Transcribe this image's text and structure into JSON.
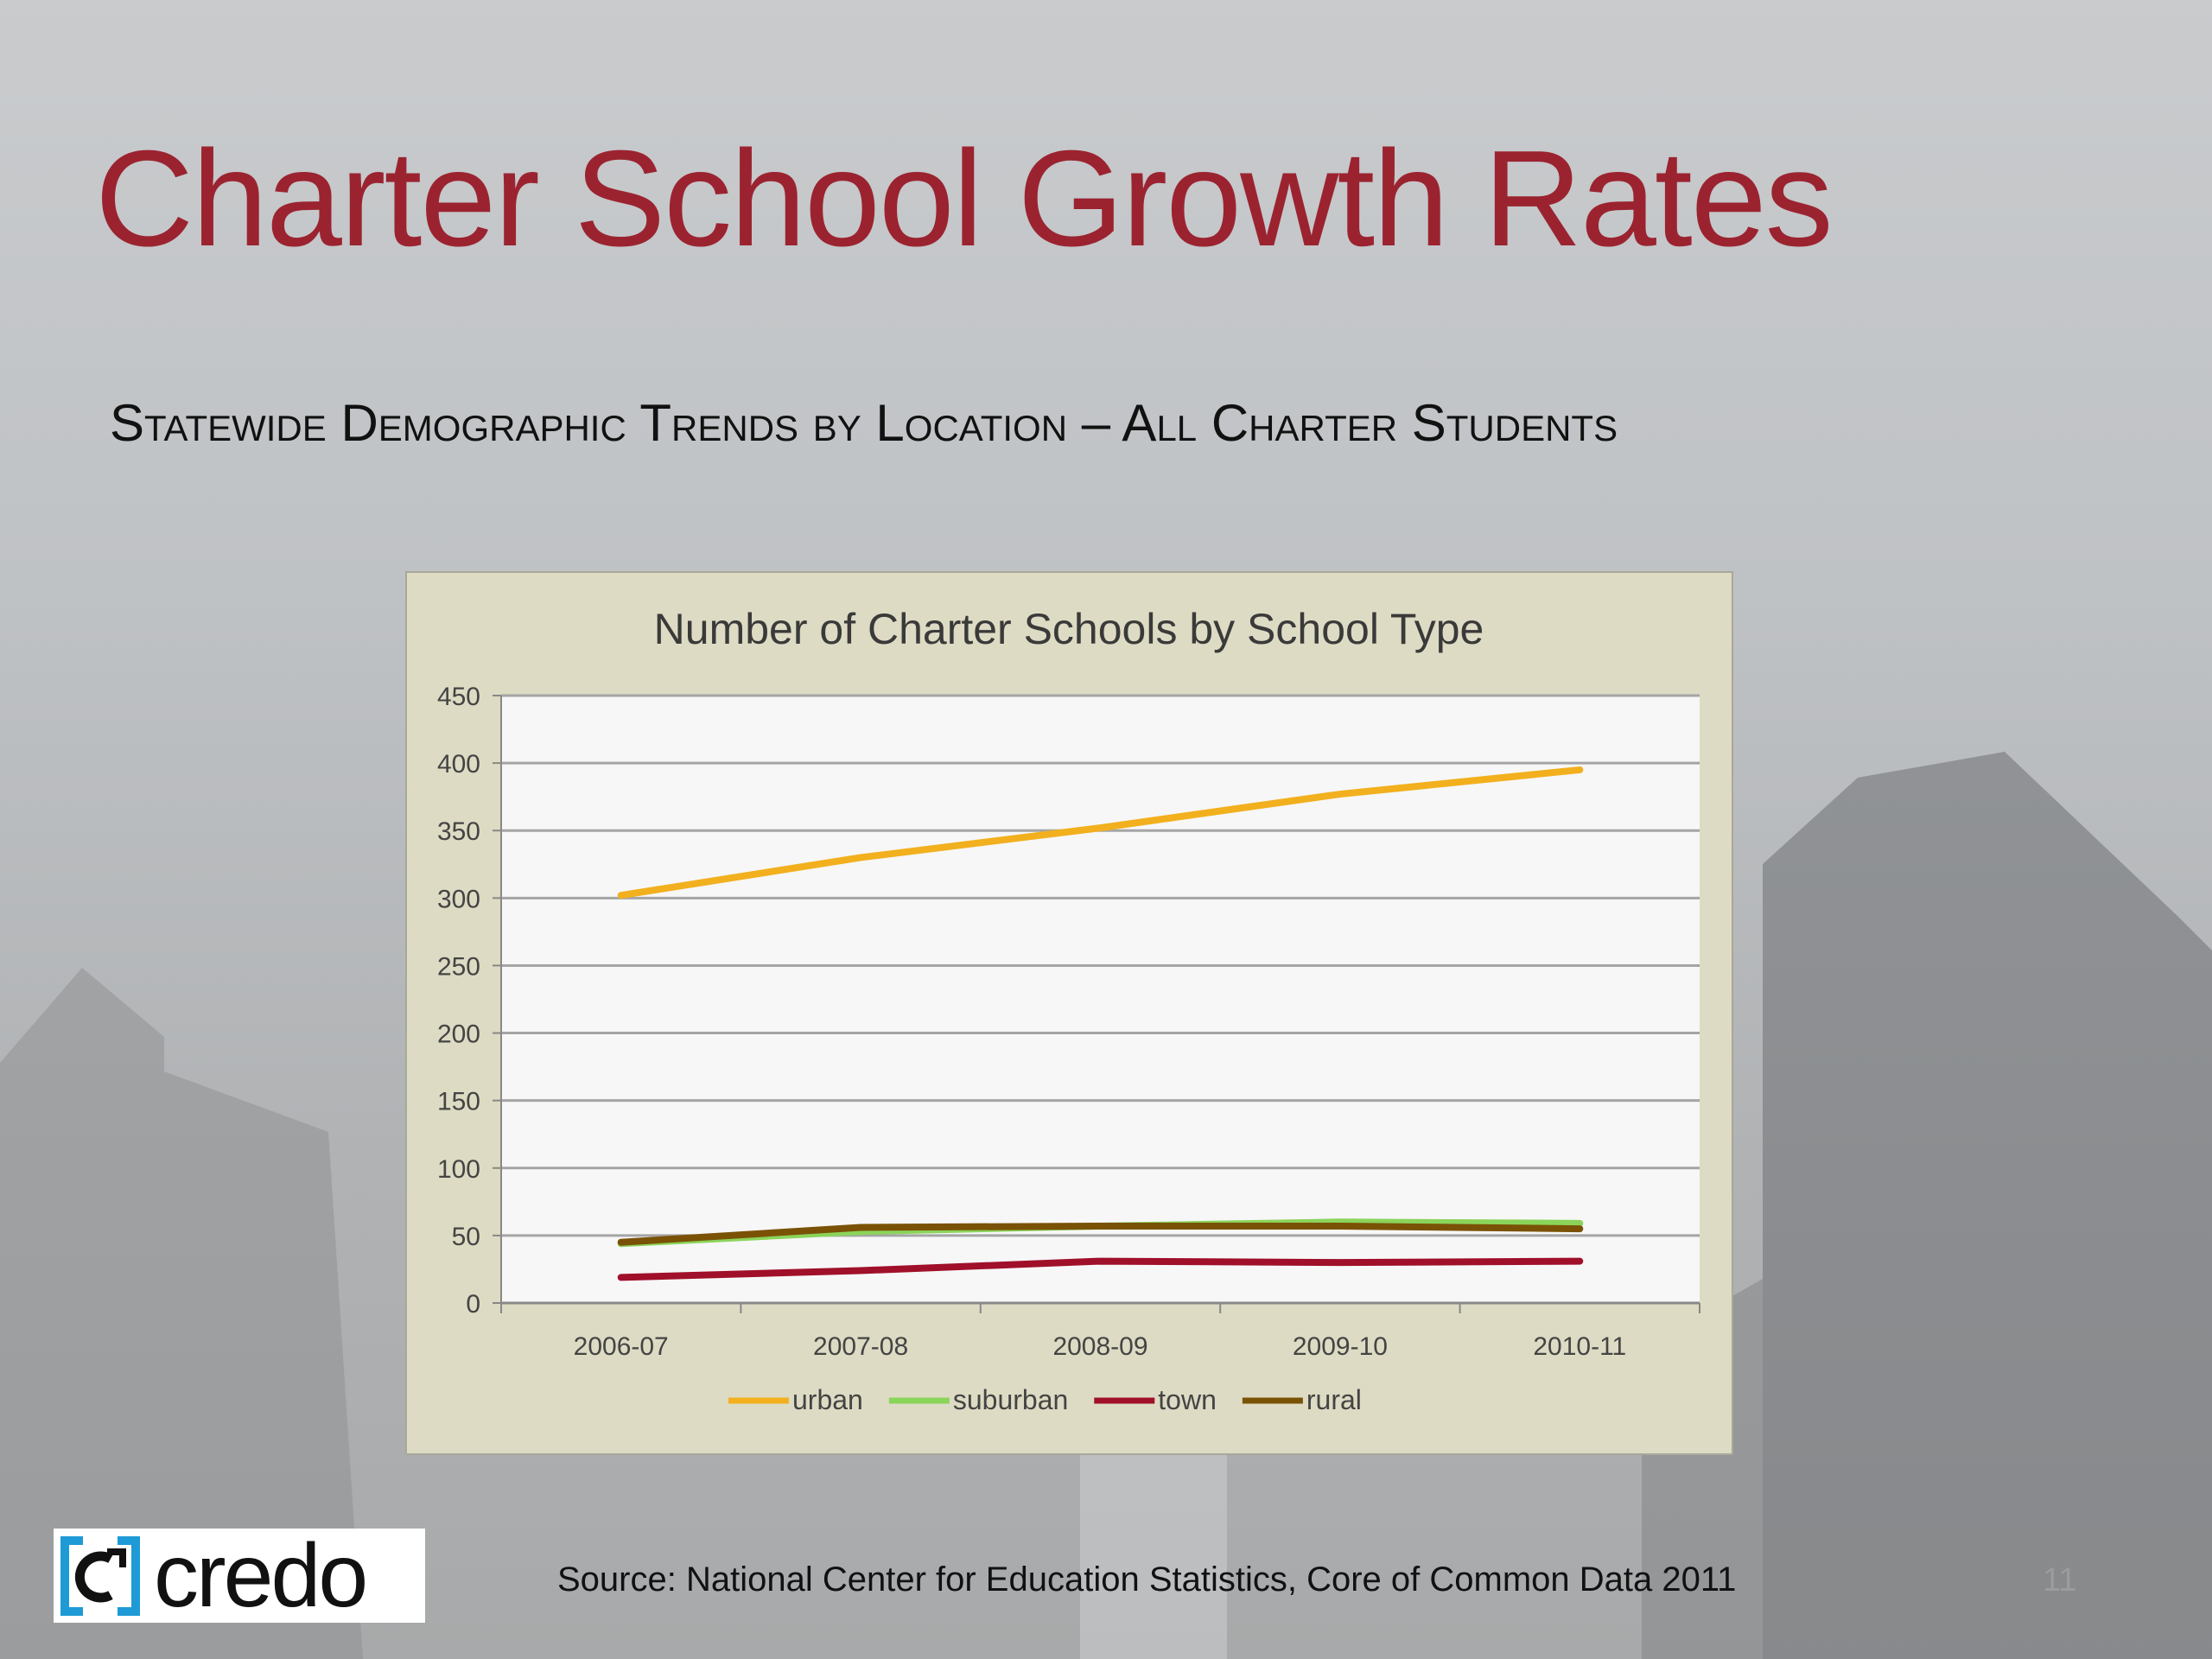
{
  "slide": {
    "title": "Charter School Growth Rates",
    "subtitle": "Statewide Demographic Trends by Location – All Charter Students",
    "source": "Source:  National Center for Education Statistics, Core of Common Data 2011",
    "page_number": "11",
    "logo_text": "credo",
    "title_color": "#9b2330"
  },
  "chart_data": {
    "type": "line",
    "title": "Number of Charter Schools by School Type",
    "categories": [
      "2006-07",
      "2007-08",
      "2008-09",
      "2009-10",
      "2010-11"
    ],
    "ylim": [
      0,
      450
    ],
    "yticks": [
      0,
      50,
      100,
      150,
      200,
      250,
      300,
      350,
      400,
      450
    ],
    "grid": true,
    "legend_position": "bottom",
    "series": [
      {
        "name": "urban",
        "color": "#f2b01e",
        "values": [
          302,
          330,
          352,
          377,
          395
        ]
      },
      {
        "name": "suburban",
        "color": "#8bd45a",
        "values": [
          44,
          53,
          57,
          60,
          59
        ]
      },
      {
        "name": "town",
        "color": "#a0102a",
        "values": [
          19,
          24,
          31,
          30,
          31
        ]
      },
      {
        "name": "rural",
        "color": "#7a5206",
        "values": [
          45,
          56,
          57,
          57,
          55
        ]
      }
    ]
  }
}
